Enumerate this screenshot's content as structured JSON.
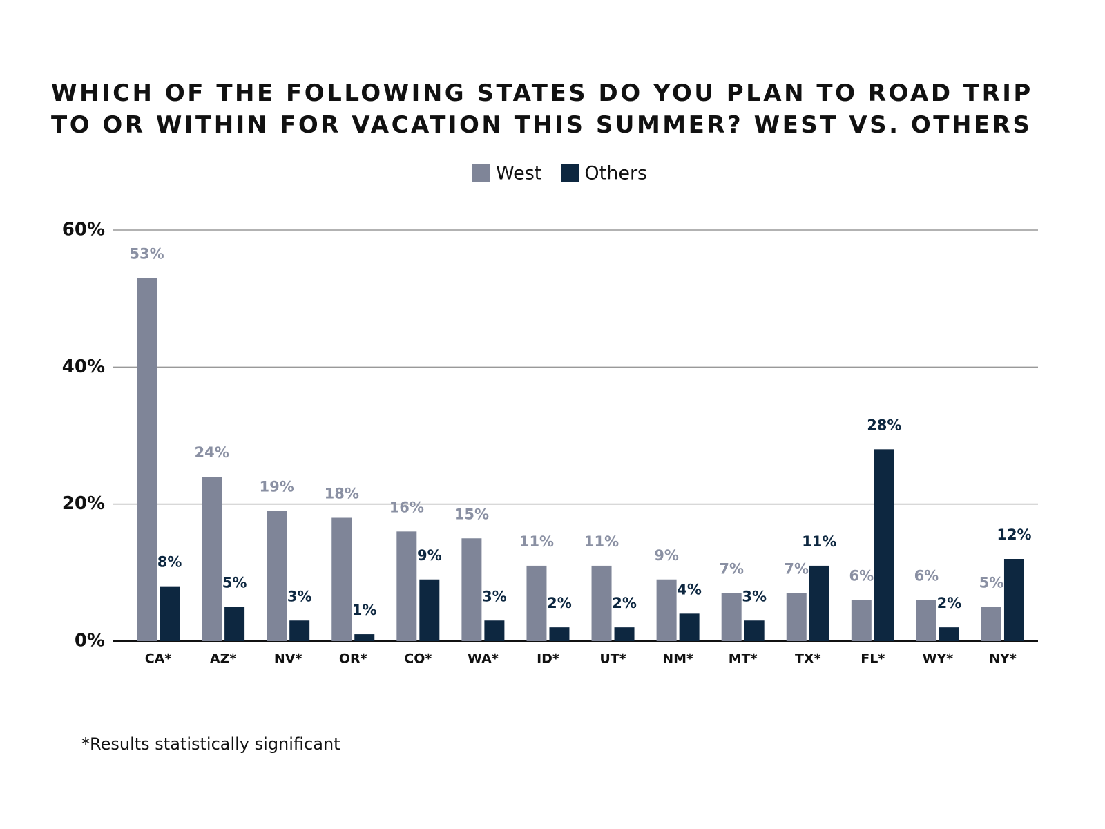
{
  "chart_data": {
    "type": "bar",
    "title": "WHICH OF THE FOLLOWING STATES DO YOU PLAN TO ROAD TRIP TO OR WITHIN FOR VACATION THIS SUMMER? WEST VS. OTHERS",
    "categories": [
      "CA*",
      "AZ*",
      "NV*",
      "OR*",
      "CO*",
      "WA*",
      "ID*",
      "UT*",
      "NM*",
      "MT*",
      "TX*",
      "FL*",
      "WY*",
      "NY*"
    ],
    "series": [
      {
        "name": "West",
        "color": "#7f8598",
        "label_color": "#8a90a3",
        "values": [
          53,
          24,
          19,
          18,
          16,
          15,
          11,
          11,
          9,
          7,
          7,
          6,
          6,
          5
        ],
        "value_labels": [
          "53%",
          "24%",
          "19%",
          "18%",
          "16%",
          "15%",
          "11%",
          "11%",
          "9%",
          "7%",
          "7%",
          "6%",
          "6%",
          "5%"
        ]
      },
      {
        "name": "Others",
        "color": "#0d2740",
        "label_color": "#0d2740",
        "values": [
          8,
          5,
          3,
          1,
          9,
          3,
          2,
          2,
          4,
          3,
          11,
          28,
          2,
          12
        ],
        "value_labels": [
          "8%",
          "5%",
          "3%",
          "1%",
          "9%",
          "3%",
          "2%",
          "2%",
          "4%",
          "3%",
          "11%",
          "28%",
          "2%",
          "12%"
        ]
      }
    ],
    "ylim": [
      0,
      60
    ],
    "yticks": [
      {
        "value": 0,
        "label": "0%"
      },
      {
        "value": 20,
        "label": "20%"
      },
      {
        "value": 40,
        "label": "40%"
      },
      {
        "value": 60,
        "label": "60%"
      }
    ],
    "grid": true,
    "legend": "top",
    "footnote": "*Results statistically significant"
  }
}
